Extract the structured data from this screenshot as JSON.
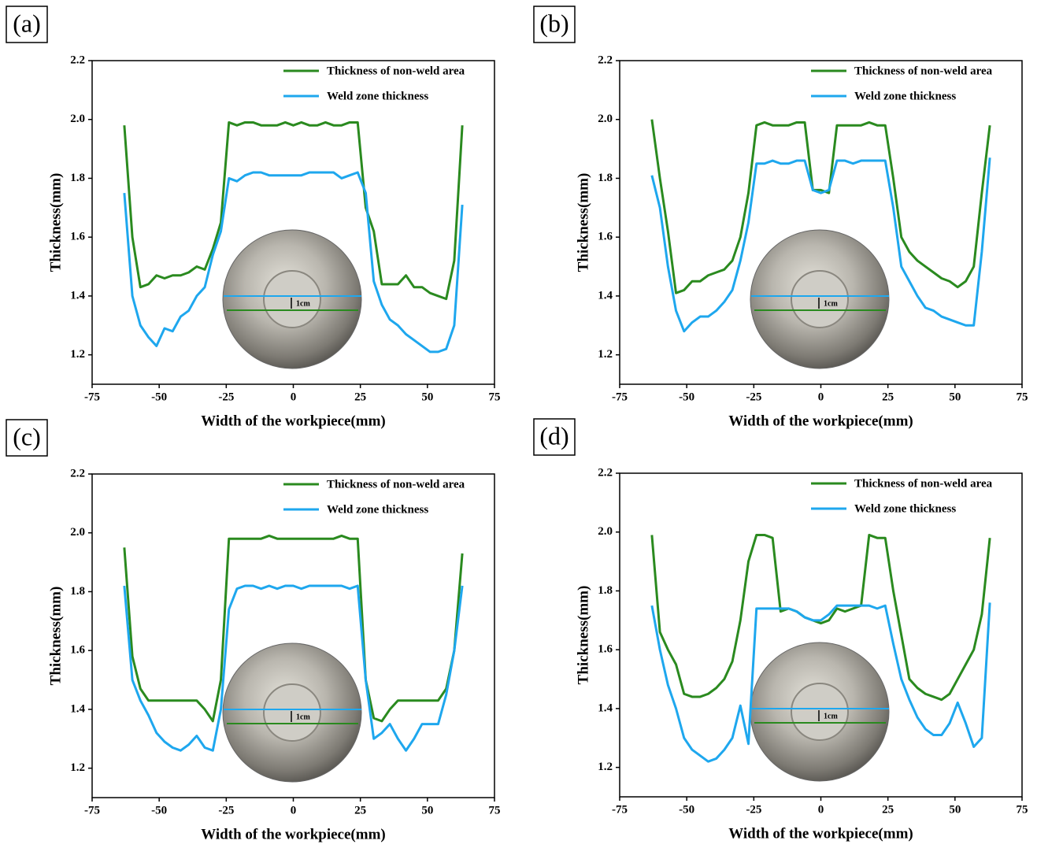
{
  "chart_data": [
    {
      "type": "line",
      "panel": "(a)",
      "xlabel": "Width of the workpiece(mm)",
      "ylabel": "Thickness(mm)",
      "inset_label": "1cm",
      "xlim": [
        -75,
        75
      ],
      "xticks": [
        -75,
        -50,
        -25,
        0,
        25,
        50,
        75
      ],
      "ylim": [
        1.1,
        2.2
      ],
      "yticks": [
        1.2,
        1.4,
        1.6,
        1.8,
        {
          "value": 2,
          "label": "2.0"
        },
        2.2
      ],
      "legend": "upper right",
      "x": [
        -63,
        -60,
        -57,
        -54,
        -51,
        -48,
        -45,
        -42,
        -39,
        -36,
        -33,
        -30,
        -27,
        -24,
        -21,
        -18,
        -15,
        -12,
        -9,
        -6,
        -3,
        0,
        3,
        6,
        9,
        12,
        15,
        18,
        21,
        24,
        27,
        30,
        33,
        36,
        39,
        42,
        45,
        48,
        51,
        54,
        57,
        60,
        63
      ],
      "series": [
        {
          "name": "Thickness of non-weld area",
          "color": "#2a8a1f",
          "values": [
            1.98,
            1.6,
            1.43,
            1.44,
            1.47,
            1.46,
            1.47,
            1.47,
            1.48,
            1.5,
            1.49,
            1.56,
            1.65,
            1.99,
            1.98,
            1.99,
            1.99,
            1.98,
            1.98,
            1.98,
            1.99,
            1.98,
            1.99,
            1.98,
            1.98,
            1.99,
            1.98,
            1.98,
            1.99,
            1.99,
            1.7,
            1.62,
            1.44,
            1.44,
            1.44,
            1.47,
            1.43,
            1.43,
            1.41,
            1.4,
            1.39,
            1.52,
            1.98
          ]
        },
        {
          "name": "Weld zone thickness",
          "color": "#1ea7ee",
          "values": [
            1.75,
            1.4,
            1.3,
            1.26,
            1.23,
            1.29,
            1.28,
            1.33,
            1.35,
            1.4,
            1.43,
            1.54,
            1.62,
            1.8,
            1.79,
            1.81,
            1.82,
            1.82,
            1.81,
            1.81,
            1.81,
            1.81,
            1.81,
            1.82,
            1.82,
            1.82,
            1.82,
            1.8,
            1.81,
            1.82,
            1.75,
            1.45,
            1.37,
            1.32,
            1.3,
            1.27,
            1.25,
            1.23,
            1.21,
            1.21,
            1.22,
            1.3,
            1.71
          ]
        }
      ]
    },
    {
      "type": "line",
      "panel": "(b)",
      "xlabel": "Width of the workpiece(mm)",
      "ylabel": "Thickness(mm)",
      "inset_label": "1cm",
      "xlim": [
        -75,
        75
      ],
      "xticks": [
        -75,
        -50,
        -25,
        0,
        25,
        50,
        75
      ],
      "ylim": [
        1.1,
        2.2
      ],
      "yticks": [
        1.2,
        1.4,
        1.6,
        1.8,
        {
          "value": 2,
          "label": "2.0"
        },
        2.2
      ],
      "legend": "upper right",
      "x": [
        -63,
        -60,
        -57,
        -54,
        -51,
        -48,
        -45,
        -42,
        -39,
        -36,
        -33,
        -30,
        -27,
        -24,
        -21,
        -18,
        -15,
        -12,
        -9,
        -6,
        -3,
        0,
        3,
        6,
        9,
        12,
        15,
        18,
        21,
        24,
        27,
        30,
        33,
        36,
        39,
        42,
        45,
        48,
        51,
        54,
        57,
        60,
        63
      ],
      "series": [
        {
          "name": "Thickness of non-weld area",
          "color": "#2a8a1f",
          "values": [
            2.0,
            1.8,
            1.62,
            1.41,
            1.42,
            1.45,
            1.45,
            1.47,
            1.48,
            1.49,
            1.52,
            1.6,
            1.75,
            1.98,
            1.99,
            1.98,
            1.98,
            1.98,
            1.99,
            1.99,
            1.76,
            1.76,
            1.75,
            1.98,
            1.98,
            1.98,
            1.98,
            1.99,
            1.98,
            1.98,
            1.8,
            1.6,
            1.55,
            1.52,
            1.5,
            1.48,
            1.46,
            1.45,
            1.43,
            1.45,
            1.5,
            1.75,
            1.98
          ]
        },
        {
          "name": "Weld zone thickness",
          "color": "#1ea7ee",
          "values": [
            1.81,
            1.7,
            1.5,
            1.35,
            1.28,
            1.31,
            1.33,
            1.33,
            1.35,
            1.38,
            1.42,
            1.52,
            1.65,
            1.85,
            1.85,
            1.86,
            1.85,
            1.85,
            1.86,
            1.86,
            1.76,
            1.75,
            1.76,
            1.86,
            1.86,
            1.85,
            1.86,
            1.86,
            1.86,
            1.86,
            1.7,
            1.5,
            1.45,
            1.4,
            1.36,
            1.35,
            1.33,
            1.32,
            1.31,
            1.3,
            1.3,
            1.55,
            1.87
          ]
        }
      ]
    },
    {
      "type": "line",
      "panel": "(c)",
      "xlabel": "Width of the workpiece(mm)",
      "ylabel": "Thickness(mm)",
      "inset_label": "1cm",
      "xlim": [
        -75,
        75
      ],
      "xticks": [
        -75,
        -50,
        -25,
        0,
        25,
        50,
        75
      ],
      "ylim": [
        1.1,
        2.2
      ],
      "yticks": [
        1.2,
        1.4,
        1.6,
        1.8,
        {
          "value": 2,
          "label": "2.0"
        },
        2.2
      ],
      "legend": "upper right",
      "x": [
        -63,
        -60,
        -57,
        -54,
        -51,
        -48,
        -45,
        -42,
        -39,
        -36,
        -33,
        -30,
        -27,
        -24,
        -21,
        -18,
        -15,
        -12,
        -9,
        -6,
        -3,
        0,
        3,
        6,
        9,
        12,
        15,
        18,
        21,
        24,
        27,
        30,
        33,
        36,
        39,
        42,
        45,
        48,
        51,
        54,
        57,
        60,
        63
      ],
      "series": [
        {
          "name": "Thickness of non-weld area",
          "color": "#2a8a1f",
          "values": [
            1.95,
            1.58,
            1.47,
            1.43,
            1.43,
            1.43,
            1.43,
            1.43,
            1.43,
            1.43,
            1.4,
            1.36,
            1.5,
            1.98,
            1.98,
            1.98,
            1.98,
            1.98,
            1.99,
            1.98,
            1.98,
            1.98,
            1.98,
            1.98,
            1.98,
            1.98,
            1.98,
            1.99,
            1.98,
            1.98,
            1.5,
            1.37,
            1.36,
            1.4,
            1.43,
            1.43,
            1.43,
            1.43,
            1.43,
            1.43,
            1.47,
            1.6,
            1.93
          ]
        },
        {
          "name": "Weld zone thickness",
          "color": "#1ea7ee",
          "values": [
            1.82,
            1.5,
            1.43,
            1.38,
            1.32,
            1.29,
            1.27,
            1.26,
            1.28,
            1.31,
            1.27,
            1.26,
            1.4,
            1.74,
            1.81,
            1.82,
            1.82,
            1.81,
            1.82,
            1.81,
            1.82,
            1.82,
            1.81,
            1.82,
            1.82,
            1.82,
            1.82,
            1.82,
            1.81,
            1.82,
            1.5,
            1.3,
            1.32,
            1.35,
            1.3,
            1.26,
            1.3,
            1.35,
            1.35,
            1.35,
            1.45,
            1.6,
            1.82
          ]
        }
      ]
    },
    {
      "type": "line",
      "panel": "(d)",
      "xlabel": "Width of the workpiece(mm)",
      "ylabel": "Thickness(mm)",
      "inset_label": "1cm",
      "xlim": [
        -75,
        75
      ],
      "xticks": [
        -75,
        -50,
        -25,
        0,
        25,
        50,
        75
      ],
      "ylim": [
        1.1,
        2.2
      ],
      "yticks": [
        1.2,
        1.4,
        1.6,
        1.8,
        {
          "value": 2,
          "label": "2.0"
        },
        2.2
      ],
      "legend": "upper right",
      "x": [
        -63,
        -60,
        -57,
        -54,
        -51,
        -48,
        -45,
        -42,
        -39,
        -36,
        -33,
        -30,
        -27,
        -24,
        -21,
        -18,
        -15,
        -12,
        -9,
        -6,
        -3,
        0,
        3,
        6,
        9,
        12,
        15,
        18,
        21,
        24,
        27,
        30,
        33,
        36,
        39,
        42,
        45,
        48,
        51,
        54,
        57,
        60,
        63
      ],
      "series": [
        {
          "name": "Thickness of non-weld area",
          "color": "#2a8a1f",
          "values": [
            1.99,
            1.66,
            1.6,
            1.55,
            1.45,
            1.44,
            1.44,
            1.45,
            1.47,
            1.5,
            1.56,
            1.7,
            1.9,
            1.99,
            1.99,
            1.98,
            1.73,
            1.74,
            1.73,
            1.71,
            1.7,
            1.69,
            1.7,
            1.74,
            1.73,
            1.74,
            1.75,
            1.99,
            1.98,
            1.98,
            1.8,
            1.65,
            1.5,
            1.47,
            1.45,
            1.44,
            1.43,
            1.45,
            1.5,
            1.55,
            1.6,
            1.72,
            1.98
          ]
        },
        {
          "name": "Weld zone thickness",
          "color": "#1ea7ee",
          "values": [
            1.75,
            1.6,
            1.48,
            1.4,
            1.3,
            1.26,
            1.24,
            1.22,
            1.23,
            1.26,
            1.3,
            1.41,
            1.28,
            1.74,
            1.74,
            1.74,
            1.74,
            1.74,
            1.73,
            1.71,
            1.7,
            1.7,
            1.72,
            1.75,
            1.75,
            1.75,
            1.75,
            1.75,
            1.74,
            1.75,
            1.62,
            1.5,
            1.43,
            1.37,
            1.33,
            1.31,
            1.31,
            1.35,
            1.42,
            1.35,
            1.27,
            1.3,
            1.76
          ]
        }
      ]
    }
  ]
}
